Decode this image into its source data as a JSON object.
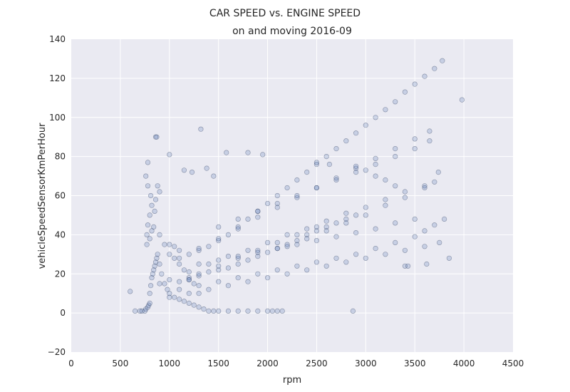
{
  "chart_data": {
    "type": "scatter",
    "title": "CAR SPEED vs. ENGINE SPEED",
    "subtitle": "on and moving 2016-09",
    "xlabel": "rpm",
    "ylabel": "vehicleSpeedSensorKmPerHour",
    "xlim": [
      0,
      4500
    ],
    "ylim": [
      -20,
      140
    ],
    "xticks": [
      0,
      500,
      1000,
      1500,
      2000,
      2500,
      3000,
      3500,
      4000,
      4500
    ],
    "yticks": [
      -20,
      0,
      20,
      40,
      60,
      80,
      100,
      120,
      140
    ],
    "grid": true,
    "legend": "none",
    "colors": {
      "background": "#eaeaf2",
      "grid": "#ffffff",
      "marker_fill": "#4c72b0",
      "marker_edge": "#1f2f4f"
    },
    "marker_alpha": 0.22,
    "series": [
      {
        "x": [
          600,
          650,
          700,
          720,
          750,
          760,
          780,
          790,
          800,
          800,
          810,
          820,
          830,
          840,
          850,
          860,
          870,
          880,
          900,
          920,
          950,
          980,
          1000,
          1050,
          1100,
          1150,
          1200,
          1250,
          1300,
          1350,
          1400,
          1450,
          1500,
          1600,
          1700,
          1800,
          1900,
          2000,
          2050,
          2100,
          2150,
          770,
          780,
          800,
          820,
          860,
          900,
          780,
          810,
          850,
          770,
          800,
          820,
          840,
          780,
          760,
          880,
          900,
          950,
          1000,
          1050,
          1100,
          1150,
          1200,
          1250,
          1300,
          1100,
          1200,
          1300,
          1400,
          1500,
          1600,
          1700,
          1800,
          1900,
          2000,
          2100,
          2200,
          2300,
          2400,
          2500,
          2600,
          2700,
          2800,
          2900,
          1200,
          1300,
          1500,
          1700,
          1900,
          2100,
          2300,
          2500,
          1000,
          1050,
          1100,
          1200,
          1300,
          1400,
          1500,
          1600,
          1700,
          1800,
          1900,
          2000,
          2100,
          2200,
          2300,
          2400,
          2500,
          2600,
          2700,
          2800,
          2900,
          3000,
          3100,
          3200,
          3300,
          3400,
          3500,
          3600,
          3700,
          3780,
          1100,
          1300,
          1500,
          1700,
          1900,
          2100,
          2300,
          2500,
          2700,
          2900,
          3100,
          3300,
          3500,
          3650,
          900,
          1000,
          1200,
          1400,
          1600,
          1800,
          2000,
          2200,
          2400,
          2600,
          2800,
          3000,
          3200,
          3400,
          3600,
          3700,
          1000,
          1200,
          1400,
          1600,
          1800,
          2000,
          2200,
          2400,
          2600,
          2800,
          3000,
          3200,
          3400,
          3600,
          3750,
          1100,
          1300,
          1500,
          1700,
          1900,
          2100,
          2300,
          2500,
          2700,
          2900,
          3100,
          3300,
          3500,
          3600,
          3700,
          3800,
          1300,
          1500,
          1700,
          1900,
          2100,
          2300,
          2500,
          2700,
          2900,
          3100,
          3300,
          3500,
          2200,
          2400,
          2600,
          2800,
          3000,
          3200,
          3400,
          3600,
          1500,
          1700,
          1900,
          2100,
          2300,
          2500,
          2700,
          2900,
          3100,
          3300,
          3500,
          3650,
          860,
          870,
          1320,
          1000,
          1580,
          1800,
          1950,
          1150,
          1230,
          1380,
          1450,
          2500,
          2630,
          2900,
          3000,
          3100,
          3200,
          3300,
          3850,
          3980,
          2870,
          3400,
          3430,
          3620,
          3740
        ],
        "y": [
          11,
          1,
          1,
          1,
          1,
          2,
          3,
          4,
          5,
          10,
          14,
          18,
          20,
          22,
          24,
          26,
          28,
          30,
          25,
          20,
          15,
          12,
          10,
          8,
          7,
          6,
          5,
          4,
          3,
          2,
          1,
          1,
          1,
          1,
          1,
          1,
          1,
          1,
          1,
          1,
          1,
          40,
          45,
          50,
          55,
          58,
          62,
          65,
          60,
          52,
          35,
          38,
          42,
          44,
          77,
          70,
          65,
          40,
          35,
          30,
          28,
          25,
          22,
          18,
          15,
          10,
          16,
          17,
          19,
          21,
          22,
          23,
          25,
          27,
          29,
          31,
          33,
          35,
          37,
          40,
          42,
          44,
          46,
          48,
          50,
          17,
          20,
          24,
          28,
          32,
          36,
          40,
          44,
          35,
          34,
          32,
          30,
          32,
          34,
          37,
          40,
          44,
          48,
          52,
          56,
          60,
          64,
          68,
          72,
          76,
          80,
          84,
          88,
          92,
          96,
          100,
          104,
          108,
          113,
          117,
          121,
          125,
          129,
          28,
          33,
          38,
          43,
          49,
          54,
          59,
          64,
          69,
          74,
          79,
          84,
          89,
          93,
          15,
          17,
          21,
          25,
          29,
          32,
          36,
          40,
          43,
          47,
          51,
          54,
          58,
          62,
          65,
          67,
          8,
          10,
          12,
          14,
          16,
          18,
          20,
          22,
          24,
          26,
          28,
          30,
          32,
          34,
          36,
          12,
          14,
          16,
          18,
          20,
          22,
          24,
          26,
          28,
          30,
          33,
          36,
          39,
          42,
          45,
          48,
          25,
          27,
          29,
          31,
          33,
          35,
          37,
          39,
          41,
          43,
          46,
          48,
          34,
          38,
          42,
          46,
          50,
          55,
          59,
          64,
          44,
          48,
          52,
          56,
          60,
          64,
          68,
          72,
          76,
          80,
          84,
          88,
          90,
          90,
          94,
          81,
          82,
          82,
          81,
          73,
          72,
          74,
          70,
          77,
          76,
          75,
          73,
          70,
          68,
          65,
          28,
          109,
          1,
          24,
          24,
          25,
          72
        ]
      }
    ]
  }
}
